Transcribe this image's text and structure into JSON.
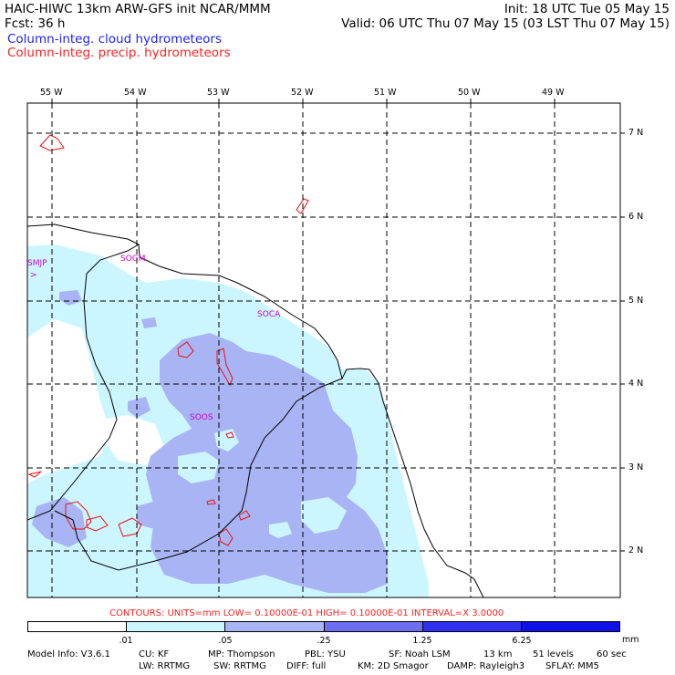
{
  "header": {
    "model_title": "HAIC-HIWC 13km ARW-GFS init   NCAR/MMM",
    "init": "Init: 18 UTC Tue 05 May 15",
    "fcst": "Fcst:   36 h",
    "valid": "Valid: 06 UTC Thu 07 May 15 (03 LST Thu 07 May 15)",
    "field_cloud": "Column-integ. cloud hydrometeors",
    "field_precip": "Column-integ. precip. hydrometeors"
  },
  "axes": {
    "longitudes": [
      "55 W",
      "54 W",
      "53 W",
      "52 W",
      "51 W",
      "50 W",
      "49 W"
    ],
    "latitudes": [
      "7 N",
      "6 N",
      "5 N",
      "4 N",
      "3 N",
      "2 N"
    ]
  },
  "stations": [
    "SMJP",
    ">",
    "SOGM",
    "SOCA",
    "SOOS"
  ],
  "contours_info": "CONTOURS:  UNITS=mm  LOW= 0.10000E-01  HIGH= 0.10000E-01  INTERVAL=X  3.0000",
  "color_scale": {
    "labels": [
      ".01",
      ".05",
      ".25",
      "1.25",
      "6.25"
    ],
    "units": "mm",
    "colors": [
      "#ffffff",
      "#ccf6ff",
      "#a8b4f4",
      "#6e6ef0",
      "#3030f0",
      "#1010e8"
    ]
  },
  "footer": {
    "line1": [
      "Model Info: V3.6.1",
      "CU: KF",
      "MP: Thompson",
      "PBL: YSU",
      "SF: Noah LSM",
      "13 km",
      "51 levels",
      "60 sec"
    ],
    "line2": [
      "LW: RRTMG",
      "SW: RRTMG",
      "DIFF: full",
      "KM: 2D Smagor",
      "DAMP: Rayleigh3",
      "SFLAY: MM5"
    ]
  }
}
